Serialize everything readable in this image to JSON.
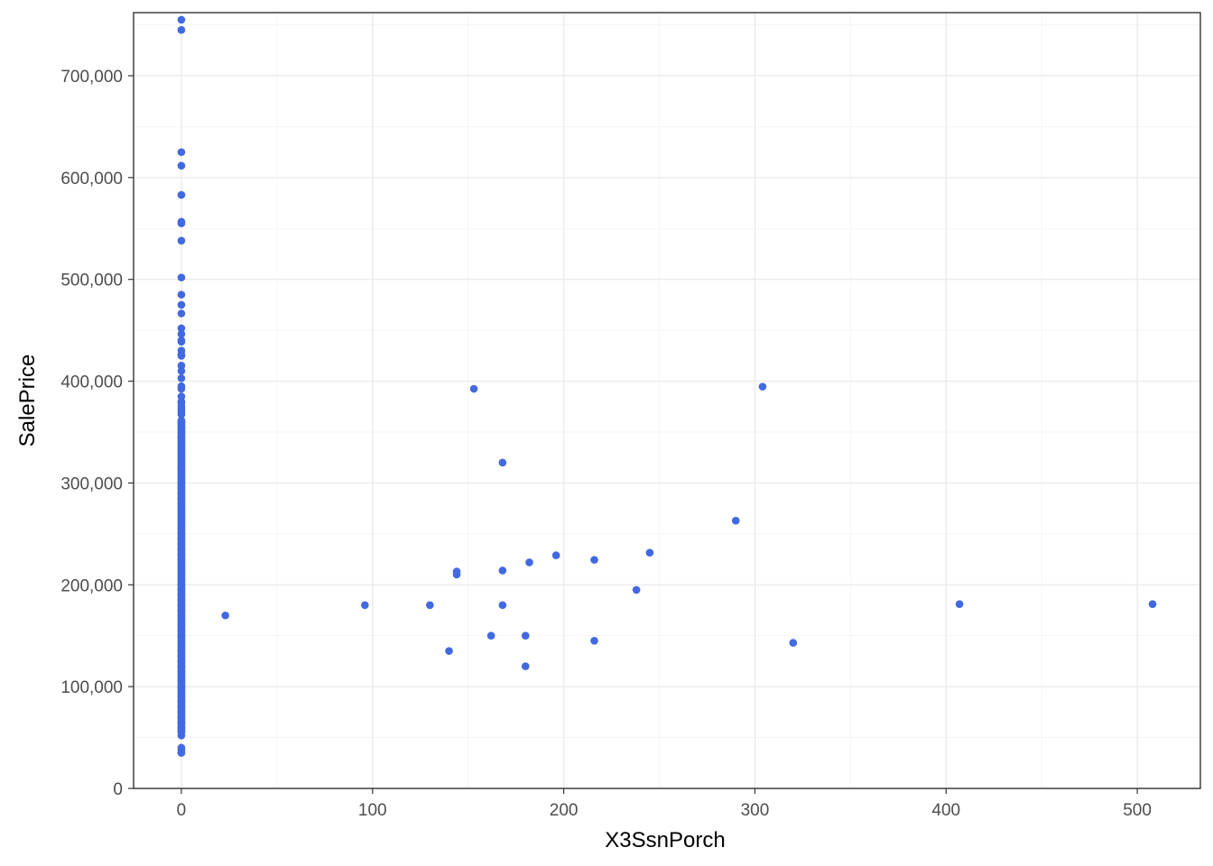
{
  "chart_data": {
    "type": "scatter",
    "title": "",
    "xlabel": "X3SsnPorch",
    "ylabel": "SalePrice",
    "xlim": [
      -25,
      533
    ],
    "ylim": [
      0,
      762000
    ],
    "x_ticks": [
      0,
      100,
      200,
      300,
      400,
      500
    ],
    "x_tick_labels": [
      "0",
      "100",
      "200",
      "300",
      "400",
      "500"
    ],
    "y_ticks": [
      0,
      100000,
      200000,
      300000,
      400000,
      500000,
      600000,
      700000
    ],
    "y_tick_labels": [
      "0",
      "100,000",
      "200,000",
      "300,000",
      "400,000",
      "500,000",
      "600,000",
      "700,000"
    ],
    "grid": true,
    "legend": "none",
    "point_color": "#4169E1",
    "points": [
      [
        0,
        755000
      ],
      [
        0,
        745000
      ],
      [
        0,
        625000
      ],
      [
        0,
        611657
      ],
      [
        0,
        582933
      ],
      [
        0,
        556581
      ],
      [
        0,
        555000
      ],
      [
        0,
        538000
      ],
      [
        0,
        501837
      ],
      [
        0,
        485000
      ],
      [
        0,
        475000
      ],
      [
        0,
        466500
      ],
      [
        0,
        452000
      ],
      [
        0,
        446261
      ],
      [
        0,
        440000
      ],
      [
        0,
        438780
      ],
      [
        0,
        430000
      ],
      [
        0,
        426000
      ],
      [
        0,
        424870
      ],
      [
        0,
        415298
      ],
      [
        0,
        410000
      ],
      [
        0,
        402861
      ],
      [
        0,
        395000
      ],
      [
        0,
        392500
      ],
      [
        0,
        385000
      ],
      [
        0,
        380000
      ],
      [
        0,
        378500
      ],
      [
        0,
        375000
      ],
      [
        0,
        372500
      ],
      [
        0,
        369900
      ],
      [
        0,
        367294
      ],
      [
        0,
        360000
      ],
      [
        0,
        354000
      ],
      [
        0,
        350000
      ],
      [
        0,
        345000
      ],
      [
        0,
        340000
      ],
      [
        0,
        335000
      ],
      [
        0,
        330000
      ],
      [
        0,
        325000
      ],
      [
        0,
        320000
      ],
      [
        0,
        315000
      ],
      [
        0,
        310000
      ],
      [
        0,
        305000
      ],
      [
        0,
        300000
      ],
      [
        0,
        295000
      ],
      [
        0,
        290000
      ],
      [
        0,
        285000
      ],
      [
        0,
        280000
      ],
      [
        0,
        275000
      ],
      [
        0,
        270000
      ],
      [
        0,
        265000
      ],
      [
        0,
        260000
      ],
      [
        0,
        255000
      ],
      [
        0,
        250000
      ],
      [
        0,
        245000
      ],
      [
        0,
        240000
      ],
      [
        0,
        235000
      ],
      [
        0,
        230000
      ],
      [
        0,
        225000
      ],
      [
        0,
        220000
      ],
      [
        0,
        215000
      ],
      [
        0,
        210000
      ],
      [
        0,
        205000
      ],
      [
        0,
        200000
      ],
      [
        0,
        195000
      ],
      [
        0,
        190000
      ],
      [
        0,
        185000
      ],
      [
        0,
        180000
      ],
      [
        0,
        175000
      ],
      [
        0,
        170000
      ],
      [
        0,
        165000
      ],
      [
        0,
        160000
      ],
      [
        0,
        155000
      ],
      [
        0,
        150000
      ],
      [
        0,
        145000
      ],
      [
        0,
        140000
      ],
      [
        0,
        135000
      ],
      [
        0,
        130000
      ],
      [
        0,
        125000
      ],
      [
        0,
        120000
      ],
      [
        0,
        115000
      ],
      [
        0,
        110000
      ],
      [
        0,
        105000
      ],
      [
        0,
        100000
      ],
      [
        0,
        95000
      ],
      [
        0,
        90000
      ],
      [
        0,
        85000
      ],
      [
        0,
        80000
      ],
      [
        0,
        75000
      ],
      [
        0,
        70000
      ],
      [
        0,
        65000
      ],
      [
        0,
        60000
      ],
      [
        0,
        55000
      ],
      [
        0,
        52000
      ],
      [
        0,
        40000
      ],
      [
        0,
        37900
      ],
      [
        0,
        35311
      ],
      [
        0,
        34900
      ],
      [
        23,
        169900
      ],
      [
        96,
        180000
      ],
      [
        130,
        180000
      ],
      [
        140,
        135000
      ],
      [
        144,
        210000
      ],
      [
        144,
        213000
      ],
      [
        153,
        392500
      ],
      [
        162,
        150000
      ],
      [
        168,
        320000
      ],
      [
        168,
        214000
      ],
      [
        168,
        180000
      ],
      [
        180,
        150000
      ],
      [
        180,
        120000
      ],
      [
        182,
        222000
      ],
      [
        196,
        228950
      ],
      [
        216,
        224500
      ],
      [
        216,
        145000
      ],
      [
        238,
        195000
      ],
      [
        245,
        231500
      ],
      [
        290,
        263000
      ],
      [
        304,
        394617
      ],
      [
        320,
        143000
      ],
      [
        407,
        181000
      ],
      [
        508,
        181000
      ]
    ]
  }
}
